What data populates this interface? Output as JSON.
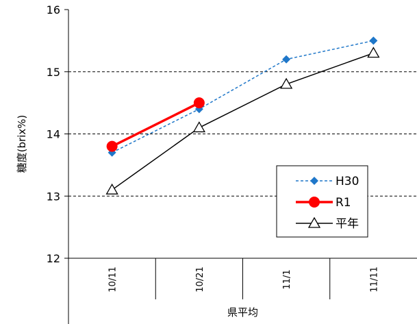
{
  "chart_data": {
    "type": "line",
    "categories": [
      "10/11",
      "10/21",
      "11/1",
      "11/11"
    ],
    "group_label": "県平均",
    "ylabel": "糖度(brix%)",
    "ylim": [
      12,
      16
    ],
    "yticks": [
      "12",
      "13",
      "14",
      "15",
      "16"
    ],
    "grid": "horizontal dashed at 13, 14, 15",
    "legend_position": "right, lower-middle",
    "series": [
      {
        "name": "H30",
        "values": [
          13.7,
          14.4,
          15.2,
          15.5
        ],
        "color": "#1f77c9",
        "marker": "diamond",
        "line": "dashed"
      },
      {
        "name": "R1",
        "values": [
          13.8,
          14.5,
          null,
          null
        ],
        "color": "#ff0000",
        "marker": "circle",
        "line": "solid-thick"
      },
      {
        "name": "平年",
        "values": [
          13.1,
          14.1,
          14.8,
          15.3
        ],
        "color": "#000000",
        "marker": "triangle-open",
        "line": "solid"
      }
    ]
  }
}
